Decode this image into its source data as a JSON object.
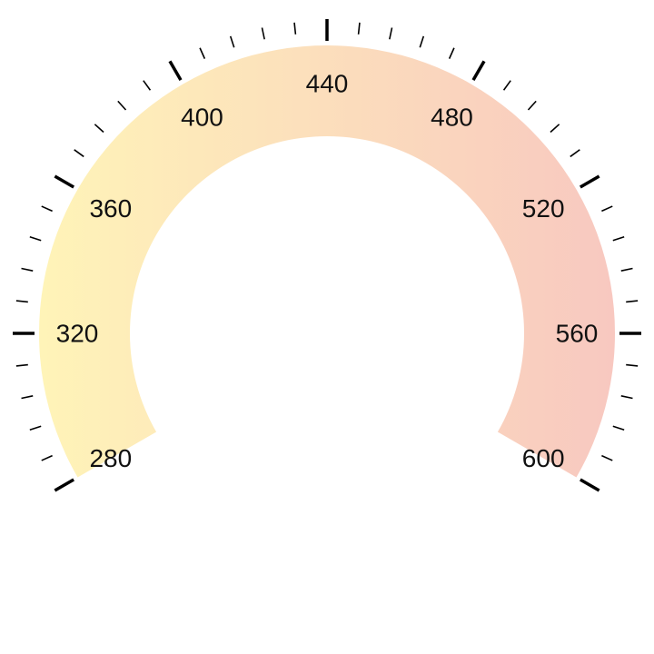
{
  "chart_data": {
    "type": "gauge",
    "min": 280,
    "max": 600,
    "major_step": 40,
    "minor_per_major": 4,
    "tick_labels": [
      "280",
      "320",
      "360",
      "400",
      "440",
      "480",
      "520",
      "560",
      "600"
    ],
    "colors": {
      "band_start": "#FFF4B8",
      "band_end": "#F8C8C0",
      "ticks": "#000000",
      "labels": "#111111",
      "background": "#FFFFFF"
    }
  }
}
